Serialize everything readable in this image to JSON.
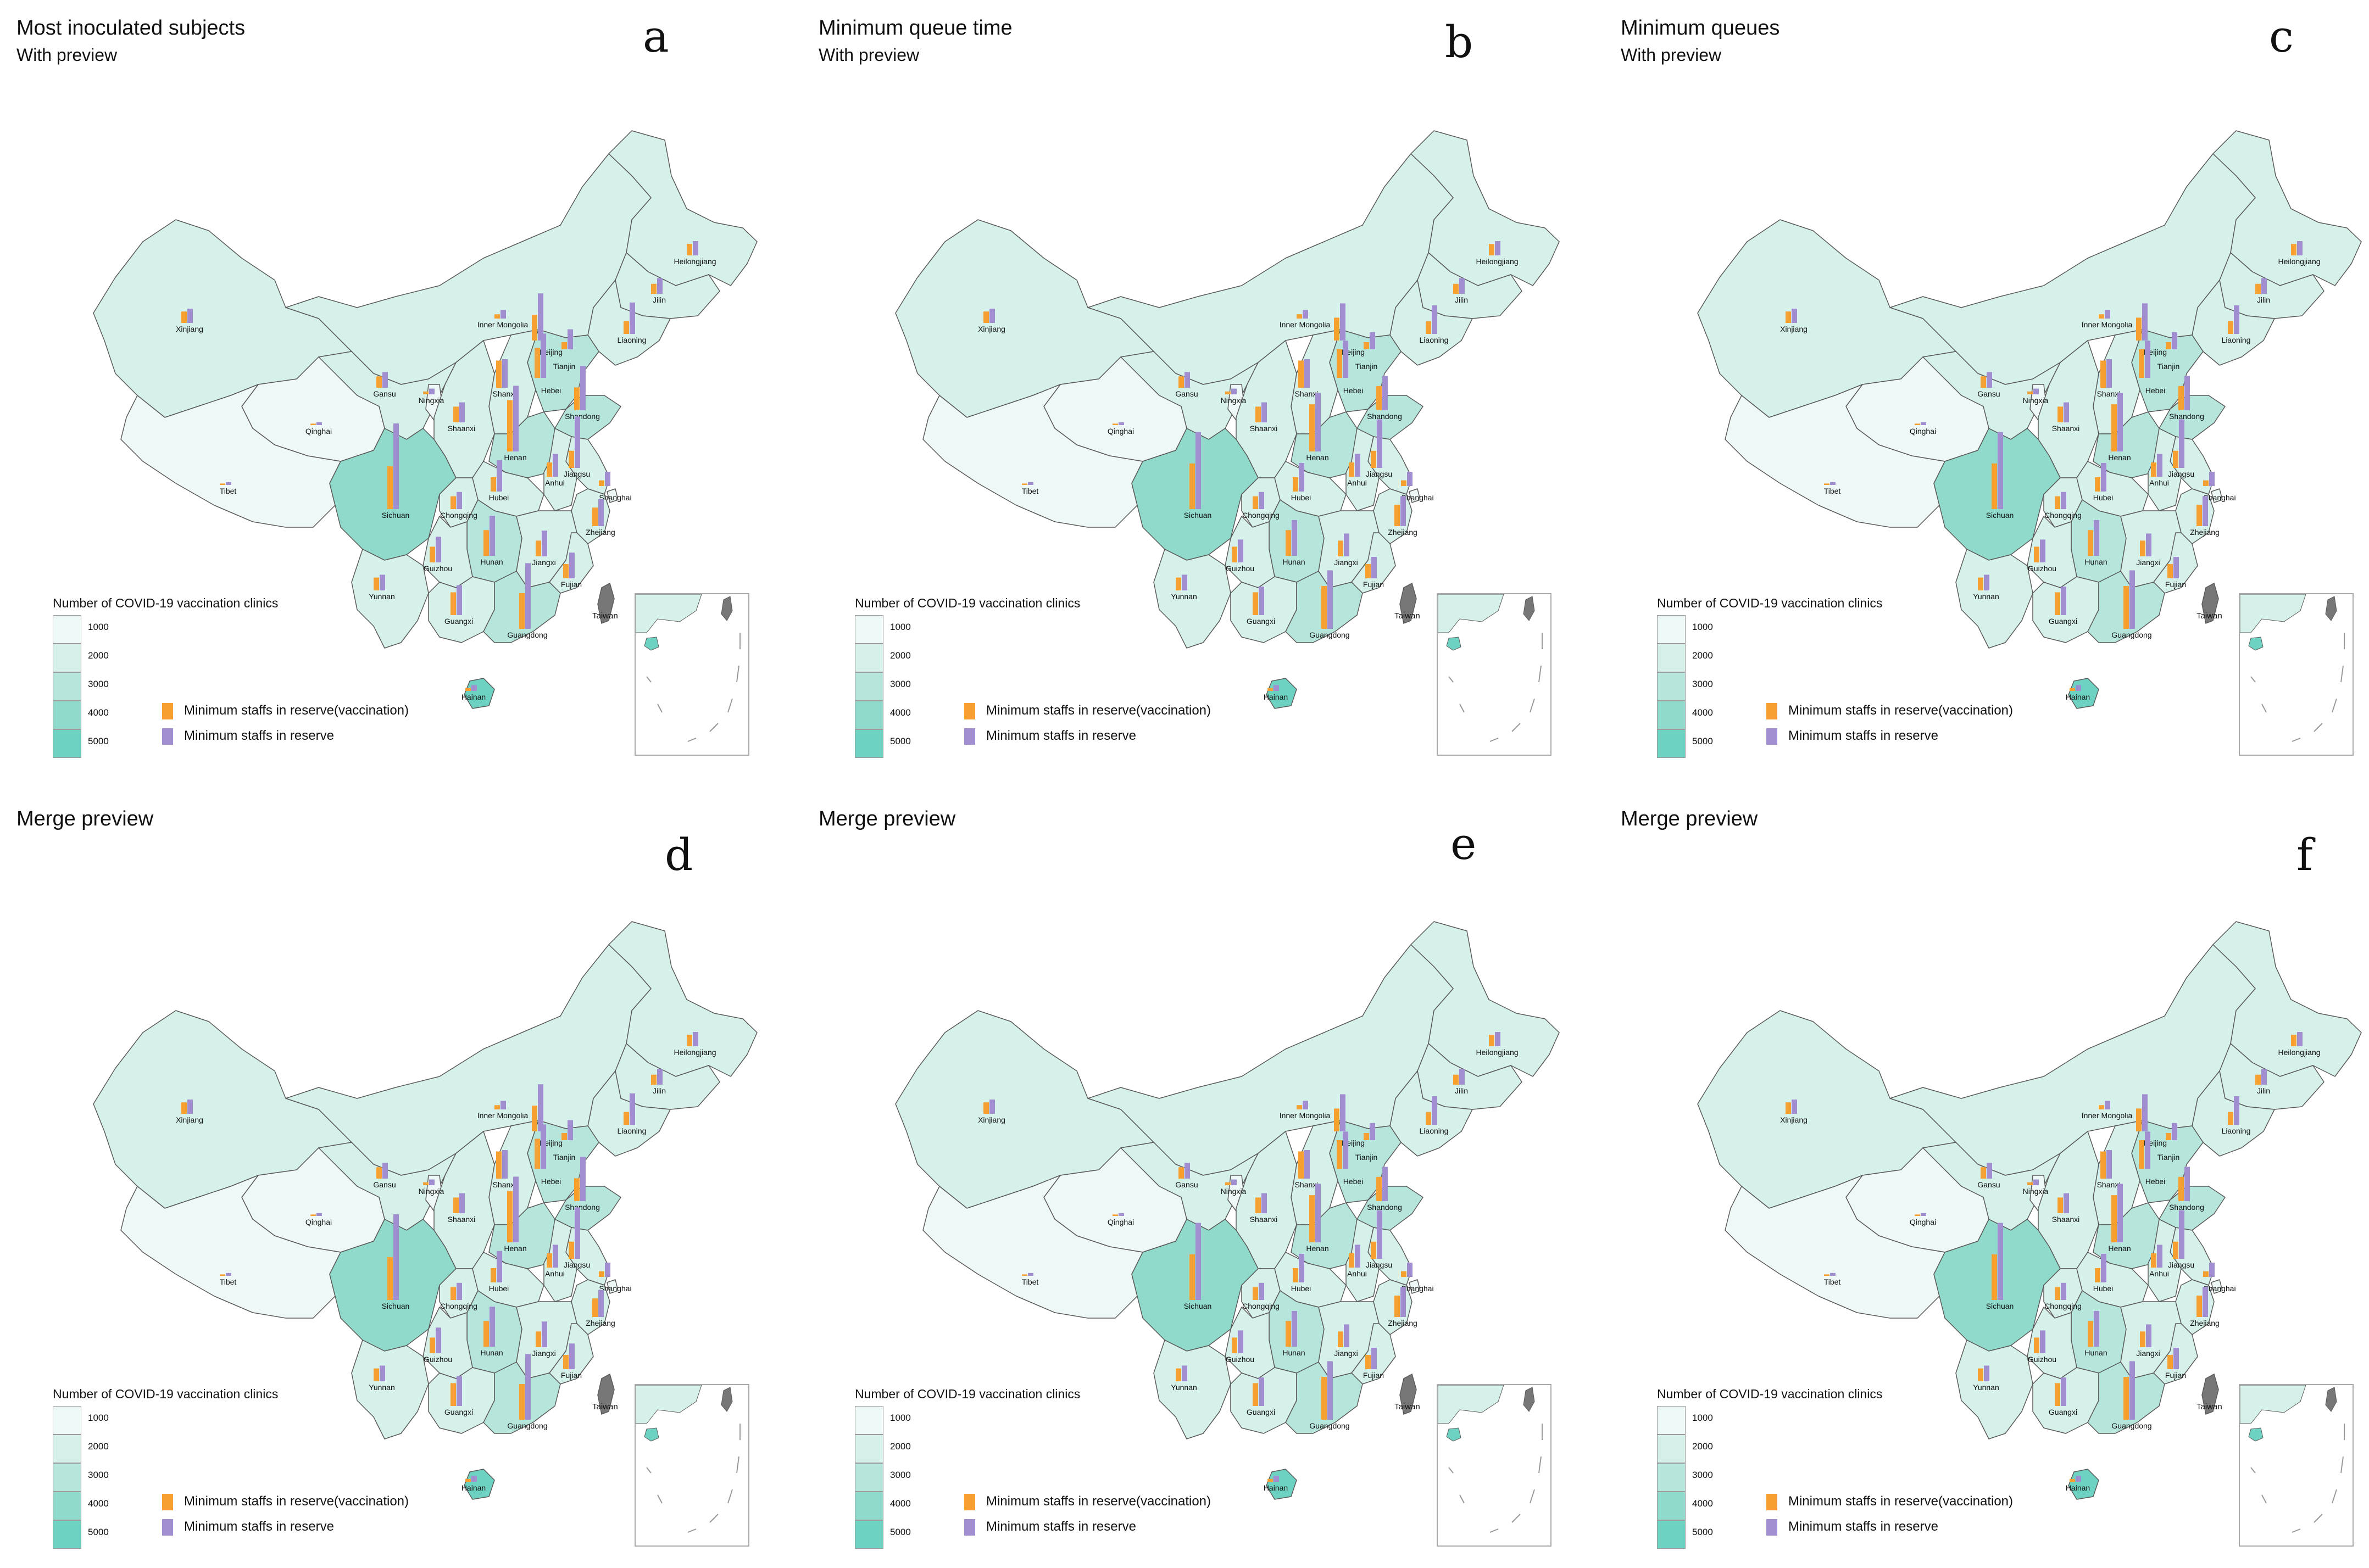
{
  "colors": {
    "bar_vaccination": "#F5A030",
    "bar_reserve": "#A08ED0",
    "border": "#5a5a5a",
    "scale": [
      "#EEF8F6",
      "#D6F0EA",
      "#B6E6DB",
      "#8FDACA",
      "#6ED2C2"
    ],
    "taiwan": "#777777"
  },
  "legend": {
    "title": "Number of COVID-19 vaccination clinics",
    "ticks": [
      "1000",
      "2000",
      "3000",
      "4000",
      "5000"
    ],
    "bar_keys": [
      "Minimum staffs in reserve(vaccination)",
      "Minimum staffs in reserve"
    ]
  },
  "taiwan_label": "Taiwan",
  "provinces": [
    {
      "name": "Heilongjiang",
      "level": 1
    },
    {
      "name": "Jilin",
      "level": 1
    },
    {
      "name": "Liaoning",
      "level": 1
    },
    {
      "name": "Inner Mongolia",
      "level": 1
    },
    {
      "name": "Xinjiang",
      "level": 1
    },
    {
      "name": "Beijing",
      "level": 1
    },
    {
      "name": "Tianjin",
      "level": 1
    },
    {
      "name": "Hebei",
      "level": 2
    },
    {
      "name": "Shanxi",
      "level": 1
    },
    {
      "name": "Shandong",
      "level": 2
    },
    {
      "name": "Gansu",
      "level": 1
    },
    {
      "name": "Ningxia",
      "level": 0
    },
    {
      "name": "Shaanxi",
      "level": 1
    },
    {
      "name": "Qinghai",
      "level": 0
    },
    {
      "name": "Henan",
      "level": 2
    },
    {
      "name": "Jiangsu",
      "level": 1
    },
    {
      "name": "Anhui",
      "level": 1
    },
    {
      "name": "Shanghai",
      "level": 0
    },
    {
      "name": "Tibet",
      "level": 0
    },
    {
      "name": "Sichuan",
      "level": 3
    },
    {
      "name": "Chongqing",
      "level": 1
    },
    {
      "name": "Hubei",
      "level": 1
    },
    {
      "name": "Zhejiang",
      "level": 1
    },
    {
      "name": "Hunan",
      "level": 2
    },
    {
      "name": "Jiangxi",
      "level": 1
    },
    {
      "name": "Fujian",
      "level": 1
    },
    {
      "name": "Guizhou",
      "level": 1
    },
    {
      "name": "Yunnan",
      "level": 1
    },
    {
      "name": "Guangxi",
      "level": 1
    },
    {
      "name": "Guangdong",
      "level": 2
    },
    {
      "name": "Hainan",
      "level": 4
    }
  ],
  "panels": [
    {
      "letter": "a",
      "title": "Most inoculated subjects",
      "subtitle": "With preview"
    },
    {
      "letter": "b",
      "title": "Minimum queue time",
      "subtitle": "With preview"
    },
    {
      "letter": "c",
      "title": "Minimum queues",
      "subtitle": "With preview"
    },
    {
      "letter": "d",
      "title": "Merge preview",
      "subtitle": ""
    },
    {
      "letter": "e",
      "title": "Merge preview",
      "subtitle": ""
    },
    {
      "letter": "f",
      "title": "Merge preview",
      "subtitle": ""
    }
  ],
  "bars": [
    {
      "Heilongjiang": [
        0.8,
        1.0
      ],
      "Jilin": [
        0.7,
        1.1
      ],
      "Liaoning": [
        0.9,
        2.2
      ],
      "Inner Mongolia": [
        0.3,
        0.6
      ],
      "Xinjiang": [
        0.8,
        1.0
      ],
      "Beijing": [
        1.8,
        3.3
      ],
      "Tianjin": [
        0.5,
        1.4
      ],
      "Hebei": [
        2.1,
        3.1
      ],
      "Shanxi": [
        1.9,
        2.0
      ],
      "Shandong": [
        1.6,
        3.1
      ],
      "Gansu": [
        0.8,
        1.1
      ],
      "Ningxia": [
        0.2,
        0.4
      ],
      "Shaanxi": [
        1.1,
        1.4
      ],
      "Qinghai": [
        0.1,
        0.2
      ],
      "Henan": [
        3.6,
        4.6
      ],
      "Jiangsu": [
        1.2,
        3.6
      ],
      "Anhui": [
        1.0,
        1.6
      ],
      "Shanghai": [
        0.4,
        1.0
      ],
      "Tibet": [
        0.1,
        0.2
      ],
      "Sichuan": [
        3.0,
        6.0
      ],
      "Chongqing": [
        0.9,
        1.2
      ],
      "Hubei": [
        1.0,
        2.2
      ],
      "Zhejiang": [
        1.3,
        1.9
      ],
      "Hunan": [
        1.8,
        2.8
      ],
      "Jiangxi": [
        1.1,
        1.8
      ],
      "Fujian": [
        1.0,
        1.8
      ],
      "Guizhou": [
        1.1,
        1.8
      ],
      "Yunnan": [
        0.9,
        1.1
      ],
      "Guangxi": [
        1.6,
        2.1
      ],
      "Guangdong": [
        2.5,
        4.6
      ],
      "Hainan": [
        0.2,
        0.4
      ]
    },
    {
      "Heilongjiang": [
        0.8,
        1.0
      ],
      "Jilin": [
        0.7,
        1.1
      ],
      "Liaoning": [
        0.9,
        2.0
      ],
      "Inner Mongolia": [
        0.3,
        0.6
      ],
      "Xinjiang": [
        0.8,
        1.0
      ],
      "Beijing": [
        1.6,
        2.6
      ],
      "Tianjin": [
        0.5,
        1.2
      ],
      "Hebei": [
        2.0,
        2.6
      ],
      "Shanxi": [
        1.9,
        2.0
      ],
      "Shandong": [
        1.7,
        2.4
      ],
      "Gansu": [
        0.8,
        1.1
      ],
      "Ningxia": [
        0.2,
        0.4
      ],
      "Shaanxi": [
        1.1,
        1.4
      ],
      "Qinghai": [
        0.1,
        0.2
      ],
      "Henan": [
        3.3,
        4.1
      ],
      "Jiangsu": [
        1.2,
        3.4
      ],
      "Anhui": [
        1.0,
        1.6
      ],
      "Shanghai": [
        0.4,
        1.0
      ],
      "Tibet": [
        0.1,
        0.2
      ],
      "Sichuan": [
        3.2,
        5.4
      ],
      "Chongqing": [
        0.9,
        1.2
      ],
      "Hubei": [
        1.0,
        2.0
      ],
      "Zhejiang": [
        1.5,
        2.1
      ],
      "Hunan": [
        1.8,
        2.5
      ],
      "Jiangxi": [
        1.1,
        1.6
      ],
      "Fujian": [
        1.0,
        1.5
      ],
      "Guizhou": [
        1.1,
        1.6
      ],
      "Yunnan": [
        0.9,
        1.1
      ],
      "Guangxi": [
        1.6,
        2.0
      ],
      "Guangdong": [
        3.0,
        4.1
      ],
      "Hainan": [
        0.2,
        0.4
      ]
    },
    {
      "Heilongjiang": [
        0.8,
        1.0
      ],
      "Jilin": [
        0.7,
        1.1
      ],
      "Liaoning": [
        0.9,
        2.0
      ],
      "Inner Mongolia": [
        0.3,
        0.6
      ],
      "Xinjiang": [
        0.8,
        1.0
      ],
      "Beijing": [
        1.6,
        2.6
      ],
      "Tianjin": [
        0.5,
        1.2
      ],
      "Hebei": [
        2.0,
        2.6
      ],
      "Shanxi": [
        1.9,
        2.0
      ],
      "Shandong": [
        1.7,
        2.4
      ],
      "Gansu": [
        0.8,
        1.1
      ],
      "Ningxia": [
        0.2,
        0.4
      ],
      "Shaanxi": [
        1.1,
        1.4
      ],
      "Qinghai": [
        0.1,
        0.2
      ],
      "Henan": [
        3.3,
        4.1
      ],
      "Jiangsu": [
        1.2,
        3.4
      ],
      "Anhui": [
        1.0,
        1.6
      ],
      "Shanghai": [
        0.4,
        1.0
      ],
      "Tibet": [
        0.1,
        0.2
      ],
      "Sichuan": [
        3.2,
        5.4
      ],
      "Chongqing": [
        0.9,
        1.2
      ],
      "Hubei": [
        1.0,
        2.0
      ],
      "Zhejiang": [
        1.5,
        2.1
      ],
      "Hunan": [
        1.8,
        2.5
      ],
      "Jiangxi": [
        1.1,
        1.6
      ],
      "Fujian": [
        1.0,
        1.5
      ],
      "Guizhou": [
        1.1,
        1.6
      ],
      "Yunnan": [
        0.9,
        1.1
      ],
      "Guangxi": [
        1.6,
        2.0
      ],
      "Guangdong": [
        3.0,
        4.1
      ],
      "Hainan": [
        0.2,
        0.4
      ]
    },
    {
      "Heilongjiang": [
        0.8,
        1.0
      ],
      "Jilin": [
        0.7,
        1.1
      ],
      "Liaoning": [
        0.9,
        2.2
      ],
      "Inner Mongolia": [
        0.3,
        0.6
      ],
      "Xinjiang": [
        0.8,
        1.0
      ],
      "Beijing": [
        1.8,
        3.3
      ],
      "Tianjin": [
        0.5,
        1.4
      ],
      "Hebei": [
        2.1,
        3.1
      ],
      "Shanxi": [
        1.9,
        2.0
      ],
      "Shandong": [
        1.6,
        3.1
      ],
      "Gansu": [
        0.8,
        1.1
      ],
      "Ningxia": [
        0.2,
        0.4
      ],
      "Shaanxi": [
        1.1,
        1.4
      ],
      "Qinghai": [
        0.1,
        0.2
      ],
      "Henan": [
        3.6,
        4.6
      ],
      "Jiangsu": [
        1.2,
        3.6
      ],
      "Anhui": [
        1.0,
        1.6
      ],
      "Shanghai": [
        0.4,
        1.0
      ],
      "Tibet": [
        0.1,
        0.2
      ],
      "Sichuan": [
        3.0,
        6.0
      ],
      "Chongqing": [
        0.9,
        1.2
      ],
      "Hubei": [
        1.0,
        2.2
      ],
      "Zhejiang": [
        1.3,
        1.9
      ],
      "Hunan": [
        1.8,
        2.8
      ],
      "Jiangxi": [
        1.1,
        1.8
      ],
      "Fujian": [
        1.0,
        1.8
      ],
      "Guizhou": [
        1.1,
        1.8
      ],
      "Yunnan": [
        0.9,
        1.1
      ],
      "Guangxi": [
        1.6,
        2.1
      ],
      "Guangdong": [
        2.5,
        4.6
      ],
      "Hainan": [
        0.2,
        0.4
      ]
    },
    {
      "Heilongjiang": [
        0.8,
        1.0
      ],
      "Jilin": [
        0.7,
        1.1
      ],
      "Liaoning": [
        0.9,
        2.0
      ],
      "Inner Mongolia": [
        0.3,
        0.6
      ],
      "Xinjiang": [
        0.8,
        1.0
      ],
      "Beijing": [
        1.6,
        2.6
      ],
      "Tianjin": [
        0.5,
        1.2
      ],
      "Hebei": [
        2.0,
        2.6
      ],
      "Shanxi": [
        1.9,
        2.0
      ],
      "Shandong": [
        1.7,
        2.4
      ],
      "Gansu": [
        0.8,
        1.1
      ],
      "Ningxia": [
        0.2,
        0.4
      ],
      "Shaanxi": [
        1.1,
        1.4
      ],
      "Qinghai": [
        0.1,
        0.2
      ],
      "Henan": [
        3.3,
        4.1
      ],
      "Jiangsu": [
        1.2,
        3.4
      ],
      "Anhui": [
        1.0,
        1.6
      ],
      "Shanghai": [
        0.4,
        1.0
      ],
      "Tibet": [
        0.1,
        0.2
      ],
      "Sichuan": [
        3.2,
        5.4
      ],
      "Chongqing": [
        0.9,
        1.2
      ],
      "Hubei": [
        1.0,
        2.0
      ],
      "Zhejiang": [
        1.5,
        2.1
      ],
      "Hunan": [
        1.8,
        2.5
      ],
      "Jiangxi": [
        1.1,
        1.6
      ],
      "Fujian": [
        1.0,
        1.5
      ],
      "Guizhou": [
        1.1,
        1.6
      ],
      "Yunnan": [
        0.9,
        1.1
      ],
      "Guangxi": [
        1.6,
        2.0
      ],
      "Guangdong": [
        3.0,
        4.1
      ],
      "Hainan": [
        0.2,
        0.4
      ]
    },
    {
      "Heilongjiang": [
        0.8,
        1.0
      ],
      "Jilin": [
        0.7,
        1.1
      ],
      "Liaoning": [
        0.9,
        2.0
      ],
      "Inner Mongolia": [
        0.3,
        0.6
      ],
      "Xinjiang": [
        0.8,
        1.0
      ],
      "Beijing": [
        1.6,
        2.6
      ],
      "Tianjin": [
        0.5,
        1.2
      ],
      "Hebei": [
        2.0,
        2.6
      ],
      "Shanxi": [
        1.9,
        2.0
      ],
      "Shandong": [
        1.7,
        2.4
      ],
      "Gansu": [
        0.8,
        1.1
      ],
      "Ningxia": [
        0.2,
        0.4
      ],
      "Shaanxi": [
        1.1,
        1.4
      ],
      "Qinghai": [
        0.1,
        0.2
      ],
      "Henan": [
        3.3,
        4.1
      ],
      "Jiangsu": [
        1.2,
        3.4
      ],
      "Anhui": [
        1.0,
        1.6
      ],
      "Shanghai": [
        0.4,
        1.0
      ],
      "Tibet": [
        0.1,
        0.2
      ],
      "Sichuan": [
        3.2,
        5.4
      ],
      "Chongqing": [
        0.9,
        1.2
      ],
      "Hubei": [
        1.0,
        2.0
      ],
      "Zhejiang": [
        1.5,
        2.1
      ],
      "Hunan": [
        1.8,
        2.5
      ],
      "Jiangxi": [
        1.1,
        1.6
      ],
      "Fujian": [
        1.0,
        1.5
      ],
      "Guizhou": [
        1.1,
        1.6
      ],
      "Yunnan": [
        0.9,
        1.1
      ],
      "Guangxi": [
        1.6,
        2.0
      ],
      "Guangdong": [
        3.0,
        4.1
      ],
      "Hainan": [
        0.2,
        0.4
      ]
    }
  ]
}
